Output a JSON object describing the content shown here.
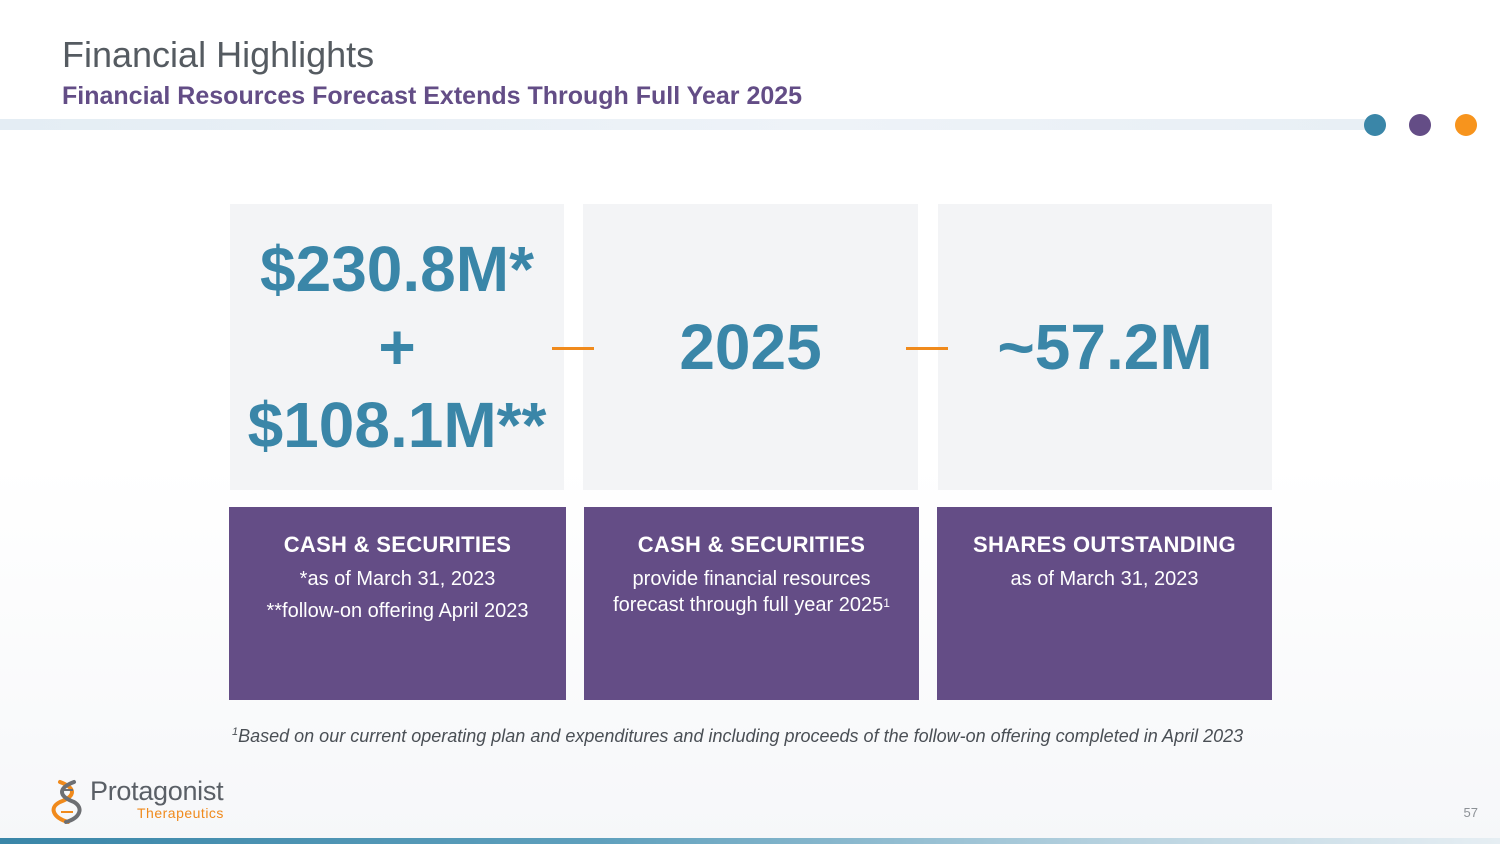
{
  "header": {
    "title": "Financial Highlights",
    "subtitle": "Financial Resources Forecast Extends Through Full Year 2025",
    "dot_colors": [
      "#3a86a8",
      "#644d86",
      "#f7941d"
    ]
  },
  "cards": [
    {
      "value_line1": "$230.8M*",
      "value_line2": "+",
      "value_line3": "$108.1M**",
      "label_title": "CASH & SECURITIES",
      "label_line1": "*as of March 31, 2023",
      "label_line2": "**follow-on offering April 2023"
    },
    {
      "value": "2025",
      "label_title": "CASH & SECURITIES",
      "label_line1": "provide financial resources",
      "label_line2": "forecast through full year 2025",
      "label_line2_sup": "1"
    },
    {
      "value": "~57.2M",
      "label_title": "SHARES OUTSTANDING",
      "label_line1": "as of March 31, 2023"
    }
  ],
  "footnote": {
    "marker": "1",
    "text": "Based on our current operating plan and expenditures and including proceeds of the follow-on offering completed in April 2023"
  },
  "logo": {
    "name": "Protagonist",
    "sub": "Therapeutics"
  },
  "page_number": "57",
  "colors": {
    "accent_blue": "#3a86a8",
    "accent_purple": "#644d86",
    "accent_orange": "#f08a1c"
  }
}
